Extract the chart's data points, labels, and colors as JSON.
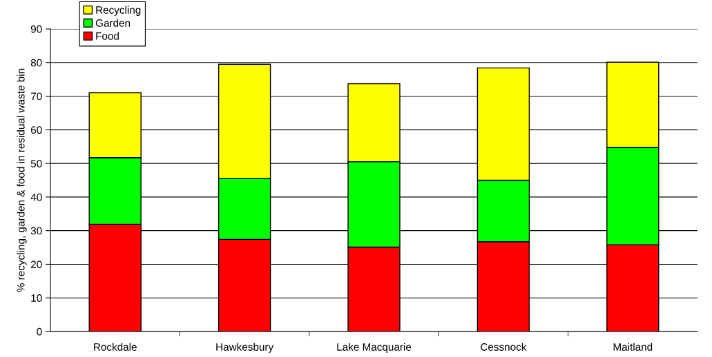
{
  "chart_data": {
    "type": "bar",
    "stacked": true,
    "ylabel": "% recycling, garden & food in residual waste bin",
    "categories": [
      "Rockdale",
      "Hawkesbury",
      "Lake Macquarie",
      "Cessnock",
      "Maitland"
    ],
    "series": [
      {
        "name": "Food",
        "color": "#ff0000",
        "values": [
          31.9,
          27.4,
          25.1,
          26.7,
          25.8
        ]
      },
      {
        "name": "Garden",
        "color": "#00ff00",
        "values": [
          19.8,
          18.2,
          25.4,
          18.3,
          29.0
        ]
      },
      {
        "name": "Recycling",
        "color": "#ffff00",
        "values": [
          19.3,
          33.9,
          23.2,
          33.4,
          25.3
        ]
      }
    ],
    "ylim": [
      0,
      90
    ],
    "yticks": [
      0,
      10,
      20,
      30,
      40,
      50,
      60,
      70,
      80,
      90
    ],
    "grid": "y",
    "legend": "top left"
  }
}
